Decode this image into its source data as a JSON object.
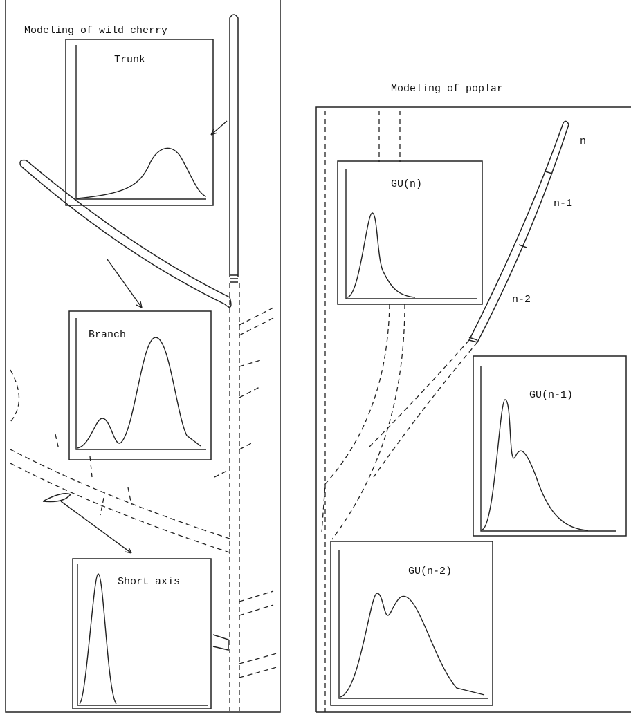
{
  "left_panel": {
    "title": "Modeling of wild cherry",
    "insets": [
      {
        "label": "Trunk"
      },
      {
        "label": "Branch"
      },
      {
        "label": "Short axis"
      }
    ]
  },
  "right_panel": {
    "title": "Modeling of poplar",
    "insets": [
      {
        "label": "GU(n)"
      },
      {
        "label": "GU(n-1)"
      },
      {
        "label": "GU(n-2)"
      }
    ],
    "segment_labels": [
      "n",
      "n-1",
      "n-2"
    ]
  }
}
